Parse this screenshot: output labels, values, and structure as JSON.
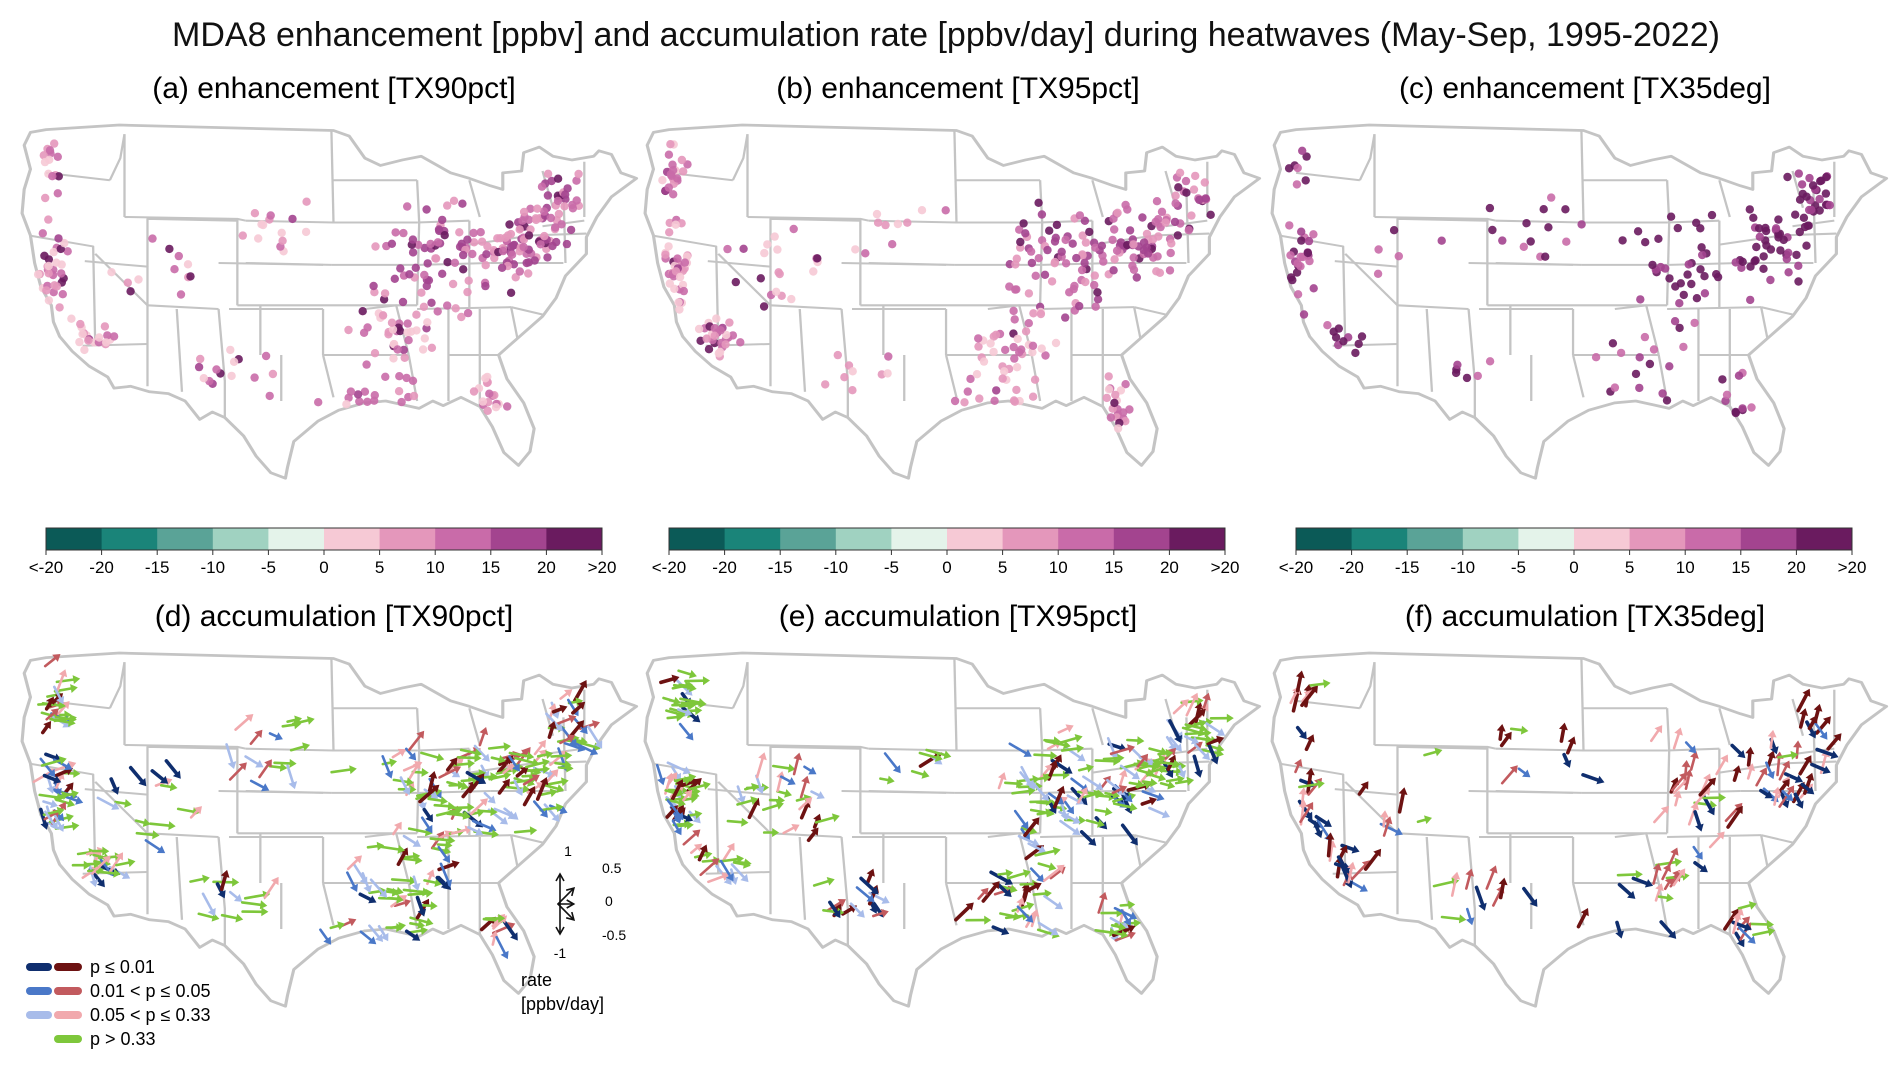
{
  "figure": {
    "title": "MDA8 enhancement [ppbv] and accumulation rate [ppbv/day] during heatwaves (May-Sep, 1995-2022)"
  },
  "colors": {
    "state_borders": "#c4c4c4",
    "ramp": [
      "#0b5a57",
      "#1a8479",
      "#5aa397",
      "#a0d2c1",
      "#e4f3ea",
      "#f6c9d5",
      "#e497bb",
      "#c96ba9",
      "#a3448f",
      "#6a1b5f"
    ],
    "arrow_sig_p001_neg": "#0f2e6e",
    "arrow_sig_p001_pos": "#6d1212",
    "arrow_sig_p005_neg": "#4a78c8",
    "arrow_sig_p005_pos": "#c25a5e",
    "arrow_sig_p033_neg": "#a8bcea",
    "arrow_sig_p033_pos": "#f1a9ad",
    "arrow_insig": "#7ec73b"
  },
  "panels": {
    "a": {
      "title": "(a) enhancement [TX90pct]",
      "density": 1.0,
      "shift": 0
    },
    "b": {
      "title": "(b) enhancement [TX95pct]",
      "density": 1.0,
      "shift": 1
    },
    "c": {
      "title": "(c) enhancement [TX35deg]",
      "density": 0.55,
      "shift": 3
    },
    "d": {
      "title": "(d) accumulation [TX90pct]",
      "density": 1.0,
      "shift": 0
    },
    "e": {
      "title": "(e) accumulation [TX95pct]",
      "density": 1.0,
      "shift": 1
    },
    "f": {
      "title": "(f) accumulation [TX35deg]",
      "density": 0.5,
      "shift": 2
    }
  },
  "colorbar": {
    "ticks": [
      "<-20",
      "-20",
      "-15",
      "-10",
      "-5",
      "0",
      "5",
      "10",
      "15",
      "20",
      ">20"
    ]
  },
  "legend": {
    "items": [
      "p ≤ 0.01",
      "0.01 < p ≤ 0.05",
      "0.05 < p ≤ 0.33",
      "p > 0.33"
    ]
  },
  "scale_key": {
    "ticks": [
      "1",
      "0.5",
      "0",
      "-0.5",
      "-1"
    ],
    "label_line1": "rate",
    "label_line2": "[ppbv/day]"
  }
}
